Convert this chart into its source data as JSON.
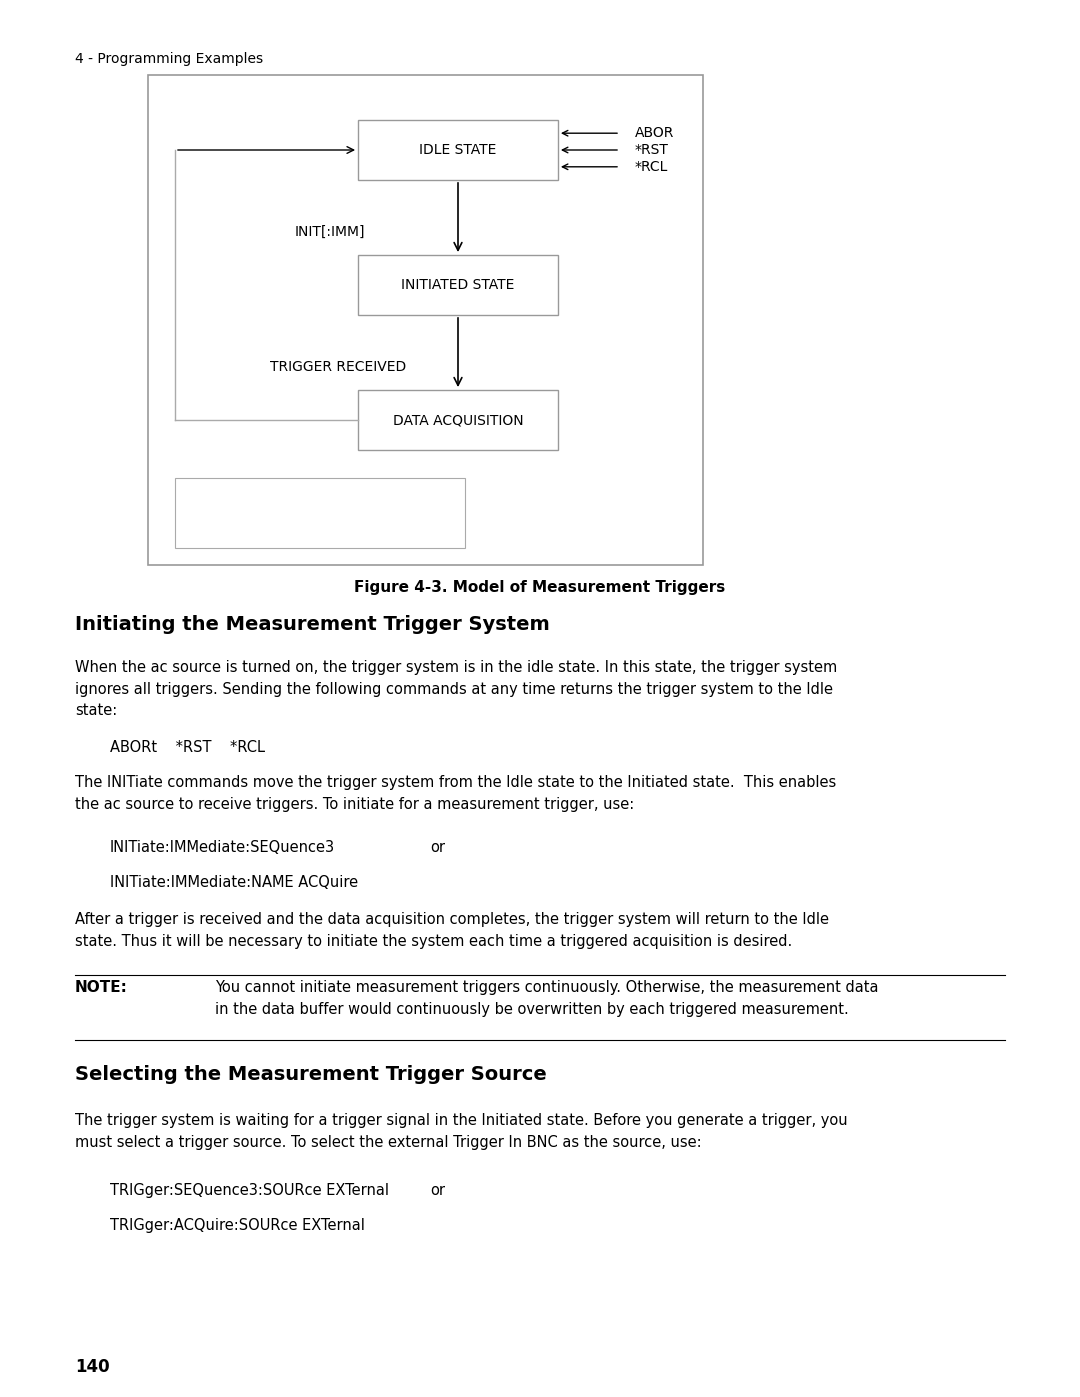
{
  "page_header": "4 - Programming Examples",
  "figure_caption": "Figure 4-3. Model of Measurement Triggers",
  "section1_title": "Initiating the Measurement Trigger System",
  "section1_para1": "When the ac source is turned on, the trigger system is in the idle state. In this state, the trigger system\nignores all triggers. Sending the following commands at any time returns the trigger system to the Idle\nstate:",
  "section1_code1": "ABORt    *RST    *RCL",
  "section1_para2": "The INITiate commands move the trigger system from the Idle state to the Initiated state.  This enables\nthe ac source to receive triggers. To initiate for a measurement trigger, use:",
  "section1_code2a": "INITiate:IMMediate:SEQuence3",
  "section1_code2b": "or",
  "section1_code2c": "INITiate:IMMediate:NAME ACQuire",
  "section1_para3": "After a trigger is received and the data acquisition completes, the trigger system will return to the Idle\nstate. Thus it will be necessary to initiate the system each time a triggered acquisition is desired.",
  "note_label": "NOTE:",
  "note_text": "You cannot initiate measurement triggers continuously. Otherwise, the measurement data\nin the data buffer would continuously be overwritten by each triggered measurement.",
  "section2_title": "Selecting the Measurement Trigger Source",
  "section2_para1": "The trigger system is waiting for a trigger signal in the Initiated state. Before you generate a trigger, you\nmust select a trigger source. To select the external Trigger In BNC as the source, use:",
  "section2_code1a": "TRIGger:SEQuence3:SOURce EXTernal",
  "section2_code1b": "or",
  "section2_code2": "TRIGger:ACQuire:SOURce EXTernal",
  "page_number": "140",
  "bg_color": "#ffffff",
  "text_color": "#000000"
}
